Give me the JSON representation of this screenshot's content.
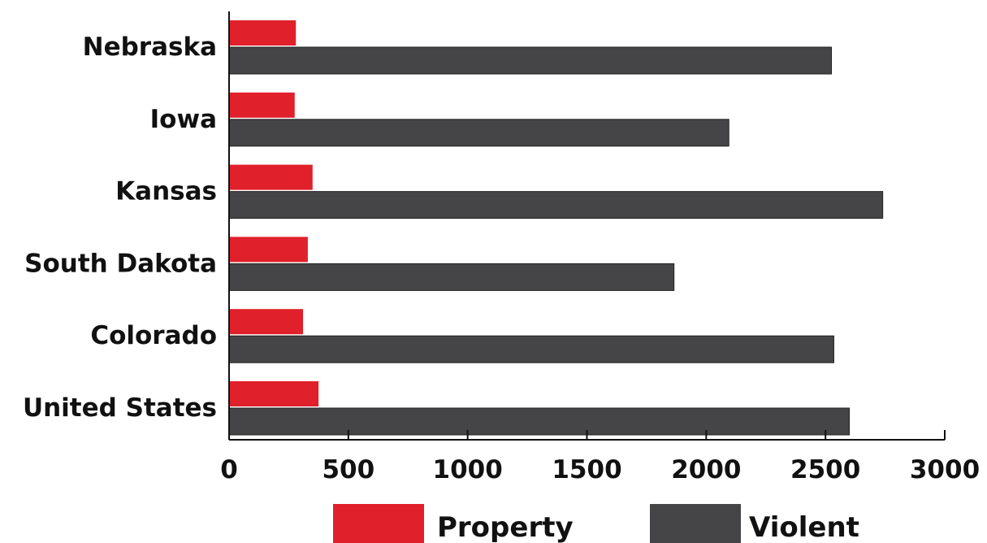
{
  "chart_data": {
    "type": "bar",
    "orientation": "horizontal",
    "title": "",
    "xlabel": "",
    "ylabel": "",
    "categories": [
      "Nebraska",
      "Iowa",
      "Kansas",
      "South Dakota",
      "Colorado",
      "United States"
    ],
    "series": [
      {
        "name": "Property",
        "color": "#e0202a",
        "values": [
          280,
          275,
          350,
          330,
          310,
          375
        ]
      },
      {
        "name": "Violent",
        "color": "#454547",
        "values": [
          2525,
          2095,
          2740,
          1865,
          2535,
          2600
        ]
      }
    ],
    "xlim": [
      0,
      3000
    ],
    "xticks": [
      "0",
      "500",
      "1000",
      "1500",
      "2000",
      "2500",
      "3000"
    ],
    "grid": false,
    "legend_position": "bottom"
  }
}
